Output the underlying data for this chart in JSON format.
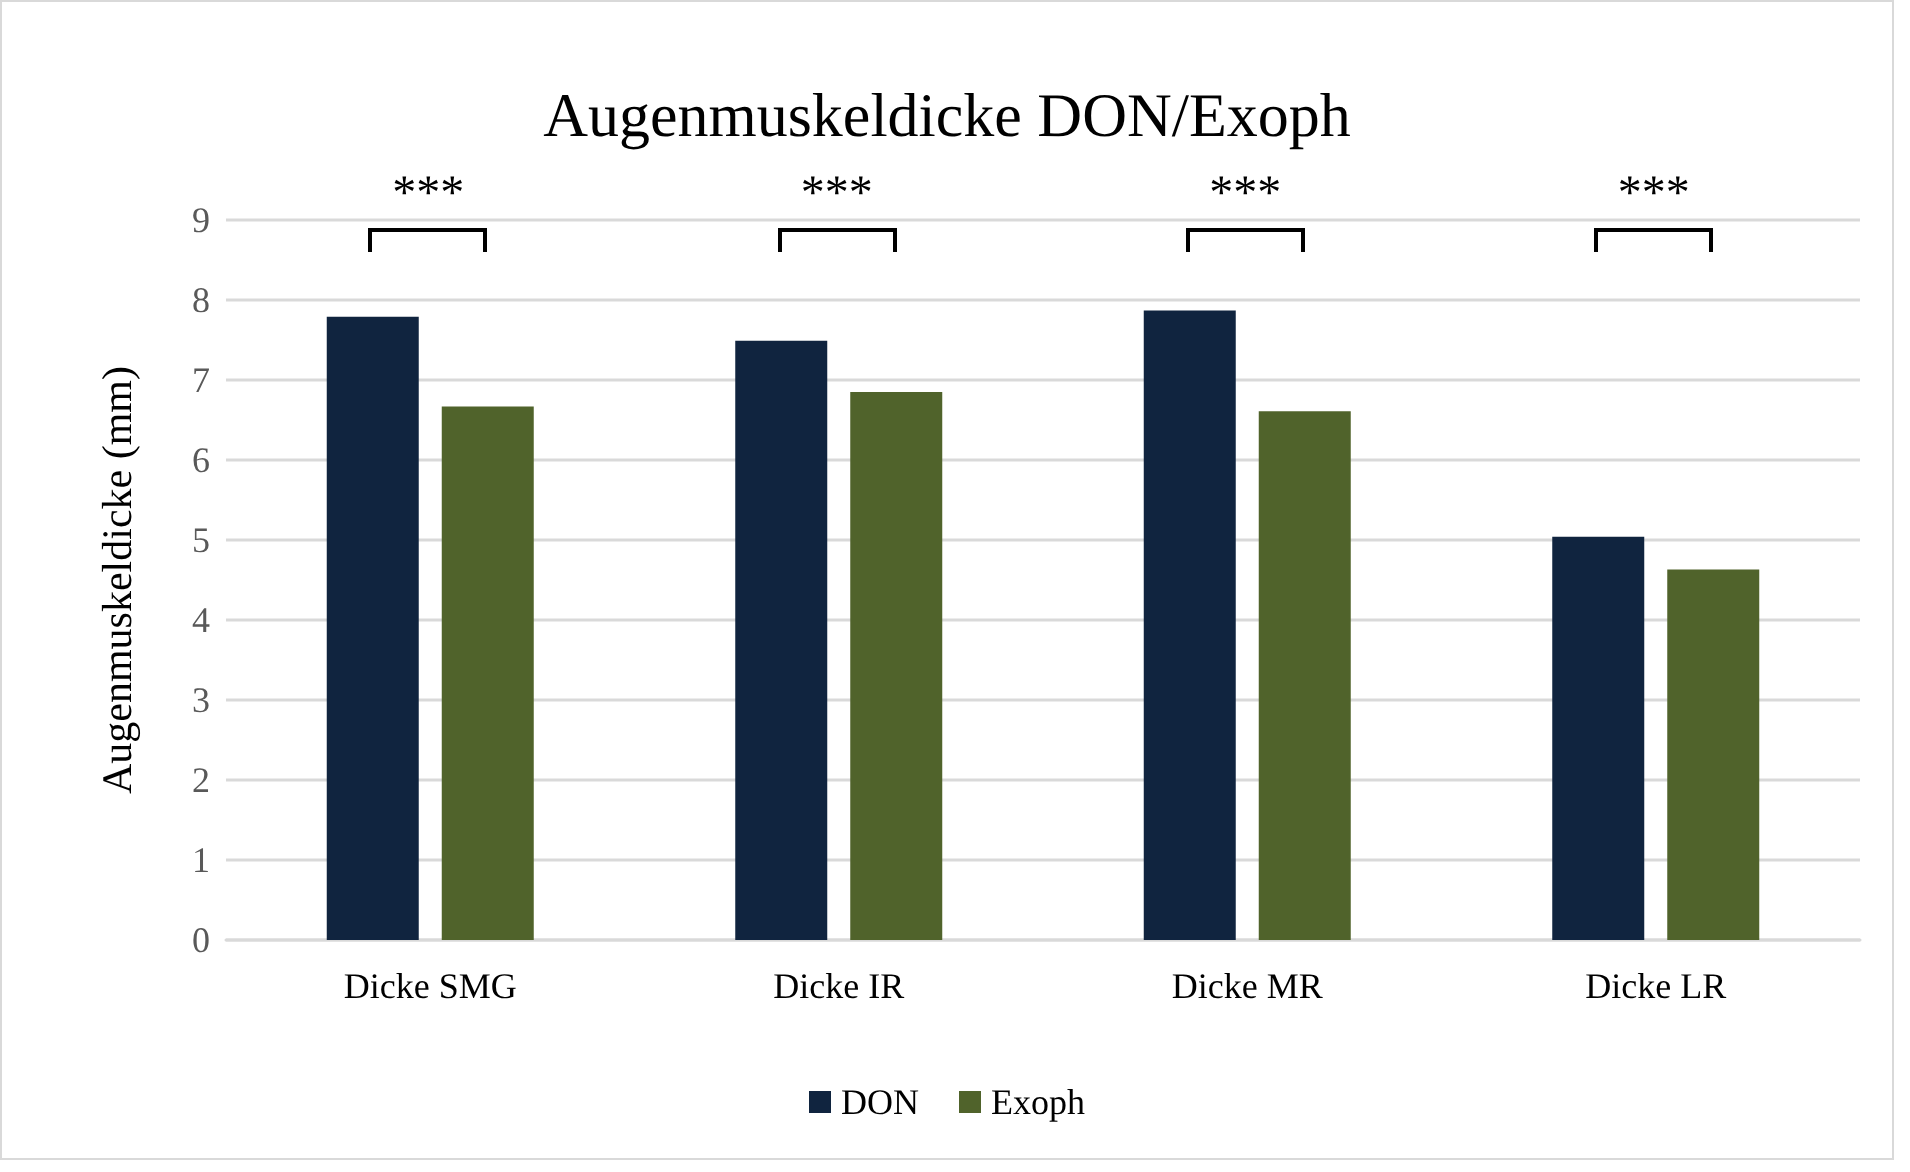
{
  "chart_data": {
    "type": "bar",
    "title": "Augenmuskeldicke DON/Exoph",
    "ylabel": "Augenmuskeldicke (mm)",
    "categories": [
      "Dicke SMG",
      "Dicke IR",
      "Dicke MR",
      "Dicke LR"
    ],
    "series": [
      {
        "name": "DON",
        "color": "#10243f",
        "values": [
          7.79,
          7.49,
          7.87,
          5.04
        ]
      },
      {
        "name": "Exoph",
        "color": "#50632b",
        "values": [
          6.67,
          6.85,
          6.61,
          4.63
        ]
      }
    ],
    "ylim": [
      0,
      9
    ],
    "yticks": [
      0,
      1,
      2,
      3,
      4,
      5,
      6,
      7,
      8,
      9
    ],
    "grid": "y",
    "legend": "bottom",
    "annotations": [
      "***",
      "***",
      "***",
      "***"
    ]
  }
}
